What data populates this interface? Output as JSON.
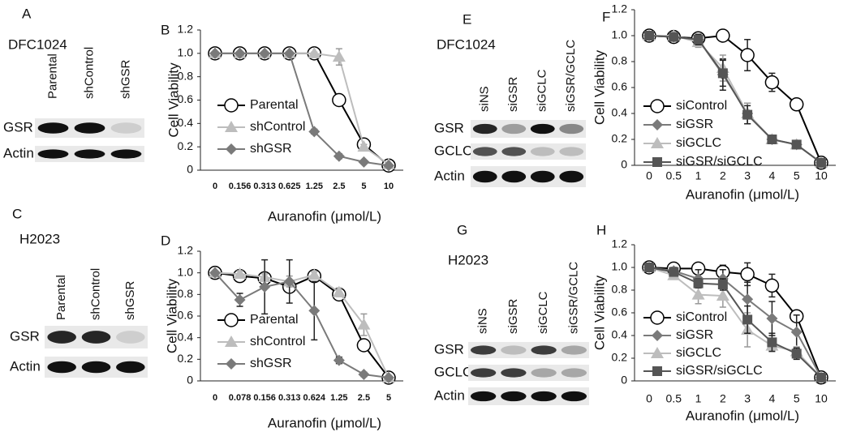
{
  "blots": [
    {
      "panel_label": "A",
      "cell_line": "DFC1024",
      "lanes": [
        "Parental",
        "shControl",
        "shGSR"
      ],
      "rows": [
        "GSR",
        "Actin"
      ]
    },
    {
      "panel_label": "C",
      "cell_line": "H2023",
      "lanes": [
        "Parental",
        "shControl",
        "shGSR"
      ],
      "rows": [
        "GSR",
        "Actin"
      ]
    },
    {
      "panel_label": "E",
      "cell_line": "DFC1024",
      "lanes": [
        "siNS",
        "siGSR",
        "siGCLC",
        "siGSR/GCLC"
      ],
      "rows": [
        "GSR",
        "GCLC",
        "Actin"
      ]
    },
    {
      "panel_label": "G",
      "cell_line": "H2023",
      "lanes": [
        "siNS",
        "siGSR",
        "siGCLC",
        "siGSR/GCLC"
      ],
      "rows": [
        "GSR",
        "GCLC",
        "Actin"
      ]
    }
  ],
  "chart_data": [
    {
      "type": "line",
      "panel_label": "B",
      "y_label": "Cell Viability",
      "x_label": "Auranofin (μmol/L)",
      "categories": [
        "0",
        "0.156",
        "0.313",
        "0.625",
        "1.25",
        "2.5",
        "5",
        "10"
      ],
      "ylim": [
        0,
        1.2
      ],
      "yticks": [
        0,
        0.2,
        0.4,
        0.6,
        0.8,
        {
          "value": 1,
          "label": "1.0"
        },
        1.2
      ],
      "series": [
        {
          "name": "Parental",
          "color": "#000000",
          "marker": "circle",
          "values": [
            1,
            1,
            1,
            1,
            1,
            0.6,
            0.22,
            0.04
          ],
          "errors": [
            0.01,
            0.01,
            0.01,
            0.01,
            0.01,
            0.02,
            0.02,
            0.01
          ]
        },
        {
          "name": "shControl",
          "color": "#bdbdbd",
          "marker": "triangle",
          "values": [
            1,
            1,
            1,
            1,
            1,
            0.97,
            0.2,
            0.05
          ],
          "errors": [
            0.01,
            0.01,
            0.01,
            0.01,
            0.01,
            0.07,
            0.02,
            0.01
          ]
        },
        {
          "name": "shGSR",
          "color": "#7a7a7a",
          "marker": "diamond",
          "values": [
            1,
            1,
            1,
            1,
            0.33,
            0.12,
            0.07,
            0.04
          ],
          "errors": [
            0.01,
            0.01,
            0.01,
            0.01,
            0.02,
            0.02,
            0.01,
            0.01
          ]
        }
      ]
    },
    {
      "type": "line",
      "panel_label": "D",
      "y_label": "Cell Viability",
      "x_label": "Auranofin (μmol/L)",
      "categories": [
        "0",
        "0.078",
        "0.156",
        "0.313",
        "0.624",
        "1.25",
        "2.5",
        "5"
      ],
      "ylim": [
        0,
        1.2
      ],
      "yticks": [
        0,
        0.2,
        0.4,
        0.6,
        0.8,
        {
          "value": 1,
          "label": "1.0"
        },
        1.2
      ],
      "series": [
        {
          "name": "Parental",
          "color": "#000000",
          "marker": "circle",
          "values": [
            1,
            0.97,
            0.95,
            0.87,
            0.97,
            0.8,
            0.33,
            0.03
          ],
          "errors": [
            0.01,
            0.02,
            0.03,
            0.05,
            0.03,
            0.05,
            0.03,
            0.02
          ]
        },
        {
          "name": "shControl",
          "color": "#bdbdbd",
          "marker": "triangle",
          "values": [
            1,
            0.99,
            0.96,
            0.92,
            0.98,
            0.82,
            0.52,
            0.03
          ],
          "errors": [
            0.01,
            0.03,
            0.03,
            0.05,
            0.03,
            0.04,
            0.1,
            0.02
          ]
        },
        {
          "name": "shGSR",
          "color": "#7a7a7a",
          "marker": "diamond",
          "values": [
            1,
            0.75,
            0.87,
            0.92,
            0.65,
            0.19,
            0.06,
            0.03
          ],
          "errors": [
            0.01,
            0.06,
            0.25,
            0.2,
            0.27,
            0.03,
            0.02,
            0.01
          ]
        }
      ]
    },
    {
      "type": "line",
      "panel_label": "F",
      "y_label": "Cell Viability",
      "x_label": "Auranofin (μmol/L)",
      "categories": [
        "0",
        "0.5",
        "1",
        "2",
        "3",
        "4",
        "5",
        "10"
      ],
      "ylim": [
        0,
        1.2
      ],
      "yticks": [
        0,
        0.2,
        0.4,
        0.6,
        0.8,
        {
          "value": 1,
          "label": "1.0"
        },
        1.2
      ],
      "series": [
        {
          "name": "siControl",
          "color": "#000000",
          "marker": "circle",
          "values": [
            1,
            0.99,
            0.98,
            1,
            0.85,
            0.64,
            0.47,
            0.02
          ],
          "errors": [
            0.02,
            0.02,
            0.02,
            0.02,
            0.12,
            0.07,
            0.03,
            0.01
          ]
        },
        {
          "name": "siGSR",
          "color": "#7a7a7a",
          "marker": "diamond",
          "values": [
            1,
            0.99,
            0.97,
            0.7,
            0.4,
            0.2,
            0.16,
            0.02
          ],
          "errors": [
            0.02,
            0.02,
            0.04,
            0.12,
            0.08,
            0.03,
            0.02,
            0.01
          ]
        },
        {
          "name": "siGCLC",
          "color": "#bdbdbd",
          "marker": "triangle",
          "values": [
            1,
            1,
            0.95,
            0.75,
            0.4,
            0.2,
            0.16,
            0.02
          ],
          "errors": [
            0.02,
            0.02,
            0.04,
            0.1,
            0.08,
            0.03,
            0.02,
            0.01
          ]
        },
        {
          "name": "siGSR/siGCLC",
          "color": "#555555",
          "marker": "square",
          "values": [
            1,
            0.99,
            0.97,
            0.71,
            0.39,
            0.2,
            0.16,
            0.02
          ],
          "errors": [
            0.02,
            0.02,
            0.04,
            0.1,
            0.07,
            0.03,
            0.02,
            0.01
          ]
        }
      ]
    },
    {
      "type": "line",
      "panel_label": "H",
      "y_label": "Cell Viability",
      "x_label": "Auranofin (μmol/L)",
      "categories": [
        "0",
        "0.5",
        "1",
        "2",
        "3",
        "4",
        "5",
        "10"
      ],
      "ylim": [
        0,
        1.2
      ],
      "yticks": [
        0,
        0.2,
        0.4,
        0.6,
        0.8,
        {
          "value": 1,
          "label": "1.0"
        },
        1.2
      ],
      "series": [
        {
          "name": "siControl",
          "color": "#000000",
          "marker": "circle",
          "values": [
            1,
            0.99,
            0.99,
            0.96,
            0.94,
            0.84,
            0.57,
            0.03
          ],
          "errors": [
            0.02,
            0.02,
            0.03,
            0.06,
            0.1,
            0.1,
            0.02,
            0.01
          ]
        },
        {
          "name": "siGSR",
          "color": "#7a7a7a",
          "marker": "diamond",
          "values": [
            1,
            0.97,
            0.9,
            0.9,
            0.72,
            0.55,
            0.43,
            0.03
          ],
          "errors": [
            0.02,
            0.03,
            0.08,
            0.08,
            0.15,
            0.15,
            0.15,
            0.01
          ]
        },
        {
          "name": "siGCLC",
          "color": "#bdbdbd",
          "marker": "triangle",
          "values": [
            1,
            0.93,
            0.76,
            0.75,
            0.45,
            0.31,
            0.26,
            0.03
          ],
          "errors": [
            0.02,
            0.03,
            0.08,
            0.1,
            0.15,
            0.04,
            0.04,
            0.01
          ]
        },
        {
          "name": "siGSR/siGCLC",
          "color": "#555555",
          "marker": "square",
          "values": [
            1,
            0.96,
            0.86,
            0.85,
            0.54,
            0.34,
            0.24,
            0.03
          ],
          "errors": [
            0.02,
            0.03,
            0.04,
            0.05,
            0.12,
            0.08,
            0.05,
            0.01
          ]
        }
      ]
    }
  ]
}
